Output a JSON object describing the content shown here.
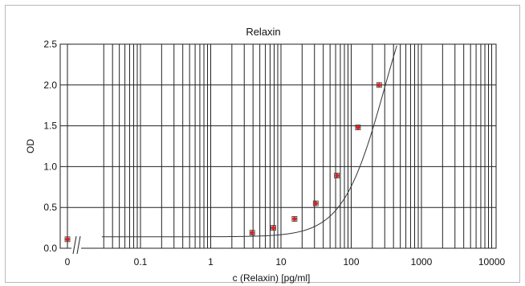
{
  "chart_data": {
    "type": "scatter",
    "title": "Relaxin",
    "xlabel": "c (Relaxin) [pg/ml]",
    "ylabel": "OD",
    "x_scale": "log",
    "xlim": [
      0.01,
      10000
    ],
    "ylim": [
      0,
      2.5
    ],
    "x_tick_labels": [
      "0",
      "0.1",
      "1",
      "10",
      "100",
      "1000",
      "10000"
    ],
    "y_tick_labels": [
      "0.0",
      "0.5",
      "1.0",
      "1.5",
      "2.0",
      "2.5"
    ],
    "grid": true,
    "colors": {
      "point": "#dd2222",
      "curve": "#333333",
      "grid": "#222222"
    },
    "points": [
      {
        "x": 0,
        "y": 0.11
      },
      {
        "x": 3.9,
        "y": 0.19
      },
      {
        "x": 7.8,
        "y": 0.25
      },
      {
        "x": 15.6,
        "y": 0.36
      },
      {
        "x": 31.25,
        "y": 0.55
      },
      {
        "x": 62.5,
        "y": 0.89
      },
      {
        "x": 125,
        "y": 1.48
      },
      {
        "x": 250,
        "y": 2.0
      }
    ],
    "curve": {
      "model": "4PL",
      "A": 0.14,
      "B": 1.45,
      "C": 300,
      "D": 3.8
    }
  }
}
